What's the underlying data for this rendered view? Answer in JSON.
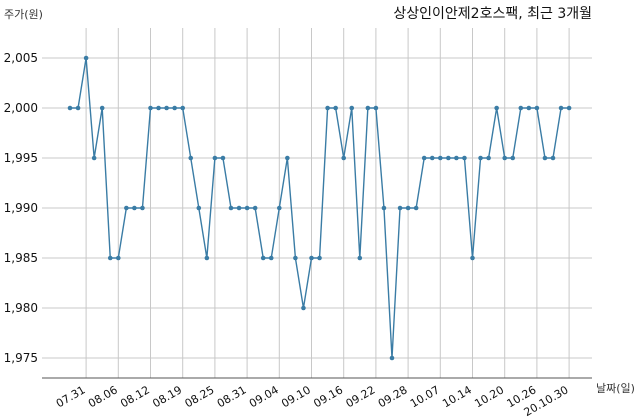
{
  "chart_data": {
    "type": "line",
    "title": "상상인이안제2호스팩, 최근 3개월",
    "ylabel": "주가(원)",
    "xlabel": "날짜(일)",
    "ylim": [
      1973,
      2008
    ],
    "yticks": [
      1975,
      1980,
      1985,
      1990,
      1995,
      2000,
      2005
    ],
    "ytick_labels": [
      "1,975",
      "1,980",
      "1,985",
      "1,990",
      "1,995",
      "2,000",
      "2,005"
    ],
    "grid": true,
    "color": "#3a7ca5",
    "xtick_labels": [
      "07.31",
      "08.06",
      "08.12",
      "08.19",
      "08.25",
      "08.31",
      "09.04",
      "09.10",
      "09.16",
      "09.22",
      "09.28",
      "10.07",
      "10.14",
      "10.20",
      "10.26",
      "20.10.30"
    ],
    "xtick_index": [
      2,
      6,
      10,
      14,
      18,
      22,
      26,
      30,
      34,
      38,
      42,
      46,
      50,
      54,
      58,
      62
    ],
    "series": [
      {
        "values": [
          2000,
          2000,
          2005,
          1995,
          2000,
          1985,
          1985,
          1990,
          1990,
          1990,
          2000,
          2000,
          2000,
          2000,
          2000,
          1995,
          1990,
          1985,
          1995,
          1995,
          1990,
          1990,
          1990,
          1990,
          1985,
          1985,
          1990,
          1995,
          1985,
          1980,
          1985,
          1985,
          2000,
          2000,
          1995,
          2000,
          1985,
          2000,
          2000,
          1990,
          1975,
          1990,
          1990,
          1990,
          1995,
          1995,
          1995,
          1995,
          1995,
          1995,
          1985,
          1995,
          1995,
          2000,
          1995,
          1995,
          2000,
          2000,
          2000,
          1995,
          1995,
          2000,
          2000
        ]
      }
    ]
  }
}
